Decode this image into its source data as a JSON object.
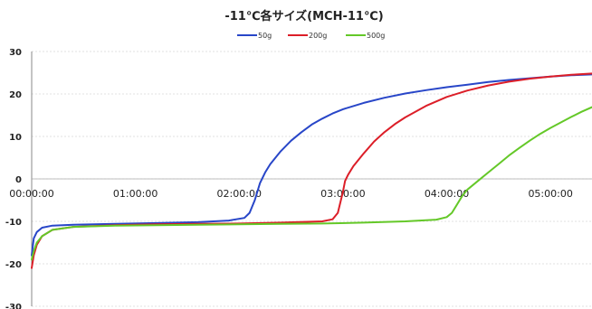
{
  "chart_data": {
    "type": "line",
    "title": "-11℃各サイズ(MCH-11℃)",
    "xlabel": "",
    "ylabel": "",
    "xlim": [
      0,
      5.4
    ],
    "ylim": [
      -30,
      30
    ],
    "yticks": [
      30,
      20,
      10,
      0,
      -10,
      -20,
      -30
    ],
    "xtick_values": [
      0,
      1,
      2,
      3,
      4,
      5
    ],
    "xtick_labels": [
      "00:00:00",
      "01:00:00",
      "02:00:00",
      "03:00:00",
      "04:00:00",
      "05:00:00"
    ],
    "grid": true,
    "legend": "top",
    "series": [
      {
        "name": "50g",
        "color": "#2846c8",
        "x": [
          0,
          0.02,
          0.05,
          0.1,
          0.2,
          0.4,
          0.8,
          1.2,
          1.6,
          1.9,
          2.05,
          2.1,
          2.15,
          2.2,
          2.25,
          2.3,
          2.4,
          2.5,
          2.6,
          2.7,
          2.8,
          2.9,
          3.0,
          3.2,
          3.4,
          3.6,
          3.8,
          4.0,
          4.2,
          4.4,
          4.6,
          4.8,
          5.0,
          5.2,
          5.4
        ],
        "y": [
          -18,
          -14,
          -12.5,
          -11.5,
          -11,
          -10.8,
          -10.6,
          -10.4,
          -10.2,
          -9.8,
          -9.2,
          -8,
          -5,
          -1,
          1.5,
          3.5,
          6.5,
          9,
          11,
          12.8,
          14.2,
          15.4,
          16.4,
          17.9,
          19.1,
          20.1,
          20.9,
          21.6,
          22.2,
          22.8,
          23.3,
          23.7,
          24.1,
          24.4,
          24.6
        ]
      },
      {
        "name": "200g",
        "color": "#dc1e28",
        "x": [
          0,
          0.02,
          0.05,
          0.1,
          0.2,
          0.4,
          0.8,
          1.2,
          1.6,
          2.0,
          2.4,
          2.8,
          2.9,
          2.95,
          3.0,
          3.02,
          3.05,
          3.1,
          3.2,
          3.3,
          3.4,
          3.5,
          3.6,
          3.8,
          4.0,
          4.2,
          4.4,
          4.6,
          4.8,
          5.0,
          5.2,
          5.4
        ],
        "y": [
          -21,
          -18,
          -15.5,
          -13.5,
          -12,
          -11.3,
          -10.9,
          -10.7,
          -10.6,
          -10.5,
          -10.3,
          -10,
          -9.5,
          -8,
          -3,
          -0.5,
          1,
          3,
          6,
          8.8,
          11,
          12.9,
          14.5,
          17.2,
          19.3,
          20.8,
          22,
          22.9,
          23.6,
          24.1,
          24.5,
          24.8
        ]
      },
      {
        "name": "500g",
        "color": "#64c828",
        "x": [
          0,
          0.02,
          0.05,
          0.1,
          0.2,
          0.4,
          0.8,
          1.2,
          1.6,
          2.0,
          2.4,
          2.8,
          3.2,
          3.6,
          3.9,
          4.0,
          4.05,
          4.1,
          4.15,
          4.2,
          4.3,
          4.4,
          4.5,
          4.6,
          4.7,
          4.8,
          4.9,
          5.0,
          5.1,
          5.2,
          5.3,
          5.4
        ],
        "y": [
          -19,
          -17,
          -15,
          -13.5,
          -12,
          -11.3,
          -11,
          -10.9,
          -10.8,
          -10.7,
          -10.6,
          -10.5,
          -10.3,
          -10,
          -9.6,
          -9,
          -8,
          -6,
          -4,
          -2.5,
          -0.5,
          1.5,
          3.5,
          5.5,
          7.3,
          9,
          10.6,
          12,
          13.3,
          14.6,
          15.8,
          16.9
        ]
      }
    ]
  }
}
